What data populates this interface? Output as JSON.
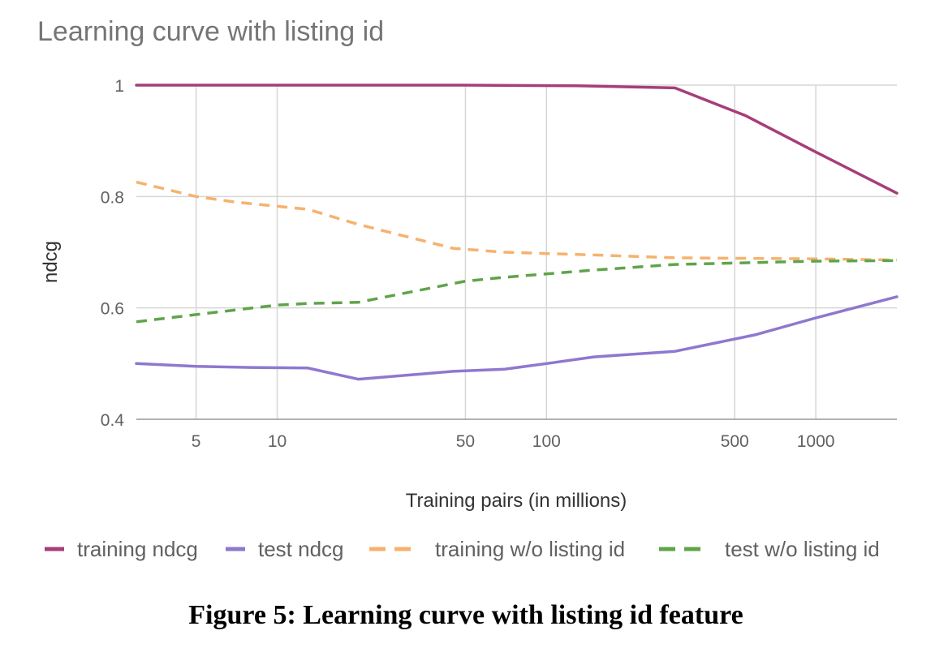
{
  "chart_data": {
    "type": "line",
    "title": "Learning curve with listing id",
    "xlabel": "Training pairs (in millions)",
    "ylabel": "ndcg",
    "x_scale": "log",
    "xlim": [
      3,
      2000
    ],
    "ylim": [
      0.4,
      1.0
    ],
    "x_ticks": [
      5,
      10,
      50,
      100,
      500,
      1000
    ],
    "x_tick_labels": [
      "5",
      "10",
      "50",
      "100",
      "500",
      "1000"
    ],
    "y_ticks": [
      0.4,
      0.6,
      0.8,
      1.0
    ],
    "y_tick_labels": [
      "0.4",
      "0.6",
      "0.8",
      "1"
    ],
    "grid": true,
    "legend_position": "bottom",
    "series": [
      {
        "name": "training ndcg",
        "color": "#a63e7a",
        "dash": "solid",
        "points": [
          [
            3,
            1.0
          ],
          [
            10,
            1.0
          ],
          [
            50,
            1.0
          ],
          [
            130,
            0.999
          ],
          [
            300,
            0.995
          ],
          [
            550,
            0.945
          ],
          [
            1000,
            0.88
          ],
          [
            2000,
            0.806
          ]
        ]
      },
      {
        "name": "test ndcg",
        "color": "#8e78cf",
        "dash": "solid",
        "points": [
          [
            3,
            0.5
          ],
          [
            5,
            0.495
          ],
          [
            8,
            0.493
          ],
          [
            13,
            0.492
          ],
          [
            20,
            0.472
          ],
          [
            45,
            0.486
          ],
          [
            70,
            0.49
          ],
          [
            100,
            0.5
          ],
          [
            150,
            0.512
          ],
          [
            300,
            0.522
          ],
          [
            600,
            0.552
          ],
          [
            1000,
            0.582
          ],
          [
            2000,
            0.62
          ]
        ]
      },
      {
        "name": "training w/o listing id",
        "color": "#f5b26f",
        "dash": "dashed",
        "points": [
          [
            3,
            0.826
          ],
          [
            5,
            0.8
          ],
          [
            7,
            0.79
          ],
          [
            13,
            0.777
          ],
          [
            20,
            0.75
          ],
          [
            45,
            0.707
          ],
          [
            70,
            0.7
          ],
          [
            150,
            0.695
          ],
          [
            300,
            0.69
          ],
          [
            1000,
            0.688
          ],
          [
            2000,
            0.686
          ]
        ]
      },
      {
        "name": "test w/o listing id",
        "color": "#5fa44a",
        "dash": "dashed",
        "points": [
          [
            3,
            0.575
          ],
          [
            5,
            0.588
          ],
          [
            10,
            0.605
          ],
          [
            13,
            0.608
          ],
          [
            20,
            0.61
          ],
          [
            50,
            0.648
          ],
          [
            70,
            0.655
          ],
          [
            150,
            0.668
          ],
          [
            300,
            0.678
          ],
          [
            1000,
            0.684
          ],
          [
            2000,
            0.685
          ]
        ]
      }
    ]
  },
  "caption": "Figure 5: Learning curve with listing id feature"
}
